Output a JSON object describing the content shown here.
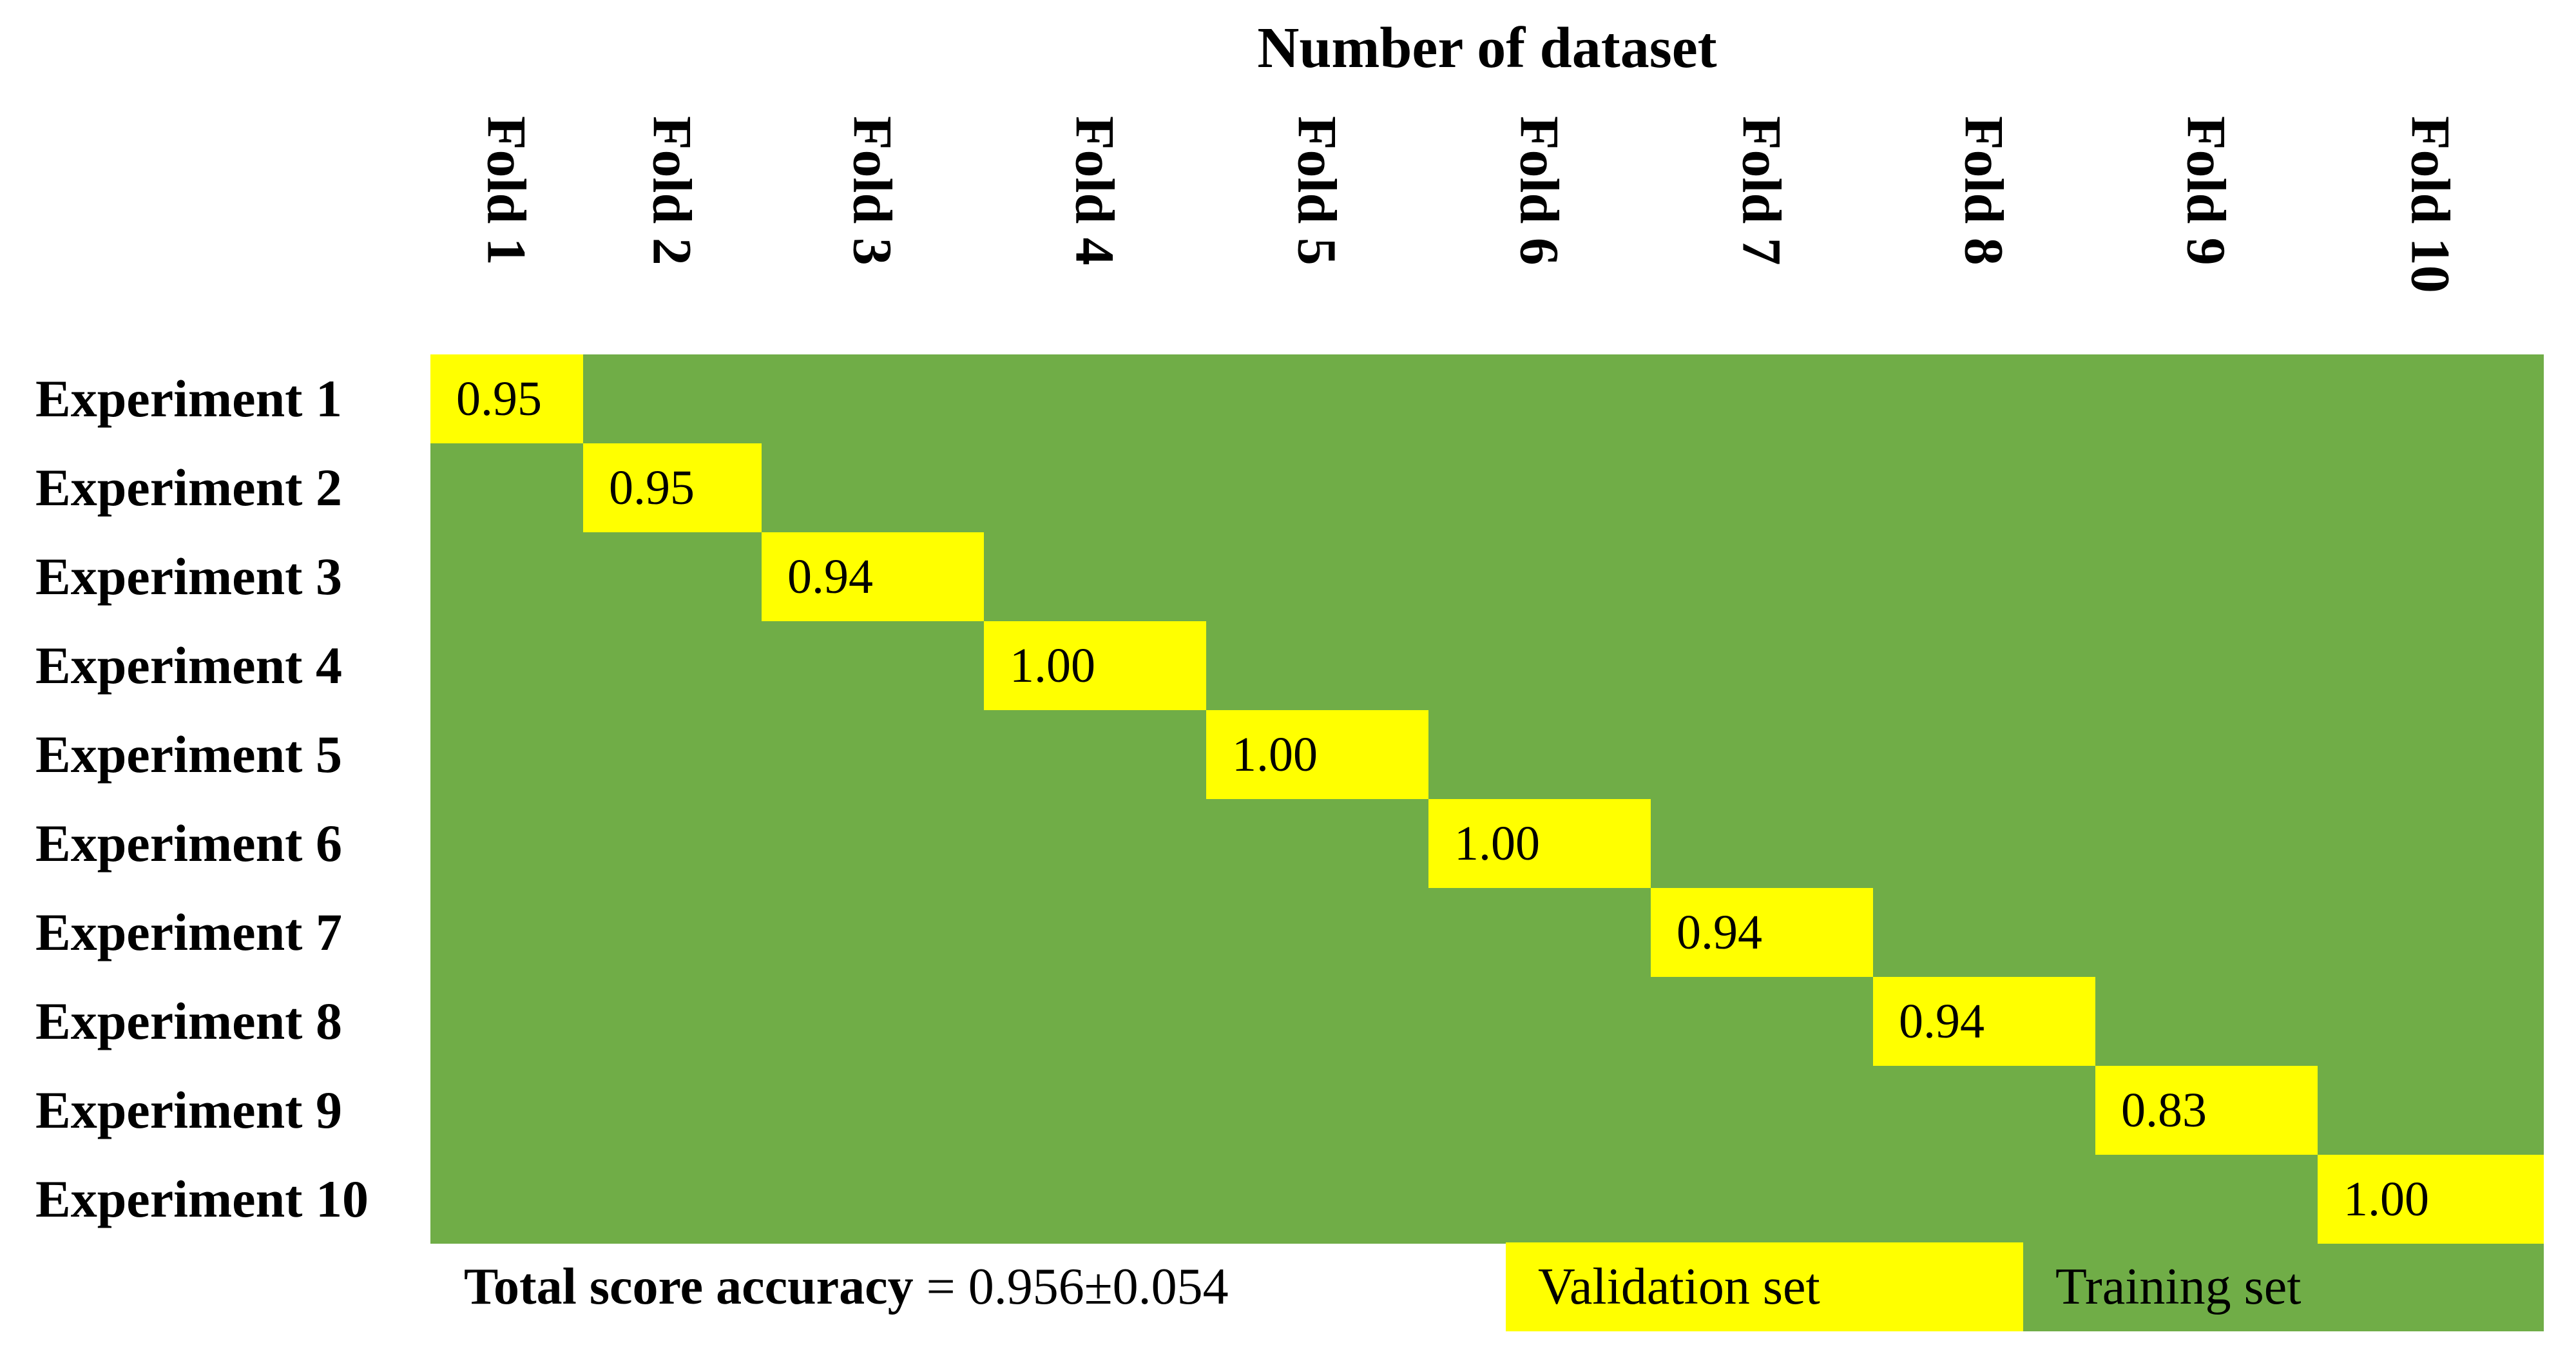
{
  "title": "Number of dataset",
  "folds": [
    "Fold 1",
    "Fold 2",
    "Fold 3",
    "Fold 4",
    "Fold 5",
    "Fold 6",
    "Fold 7",
    "Fold 8",
    "Fold 9",
    "Fold 10"
  ],
  "experiments": [
    {
      "label": "Experiment 1",
      "score": "0.95"
    },
    {
      "label": "Experiment 2",
      "score": "0.95"
    },
    {
      "label": "Experiment 3",
      "score": "0.94"
    },
    {
      "label": "Experiment 4",
      "score": "1.00"
    },
    {
      "label": "Experiment 5",
      "score": "1.00"
    },
    {
      "label": "Experiment 6",
      "score": "1.00"
    },
    {
      "label": "Experiment 7",
      "score": "0.94"
    },
    {
      "label": "Experiment 8",
      "score": "0.94"
    },
    {
      "label": "Experiment 9",
      "score": "0.83"
    },
    {
      "label": "Experiment 10",
      "score": "1.00"
    }
  ],
  "footer": {
    "total_label": "Total score accuracy",
    "total_value": " = 0.956±0.054"
  },
  "legend": {
    "validation": "Validation set",
    "training": "Training set"
  },
  "colors": {
    "training": "#70ad47",
    "validation": "#ffff00"
  }
}
